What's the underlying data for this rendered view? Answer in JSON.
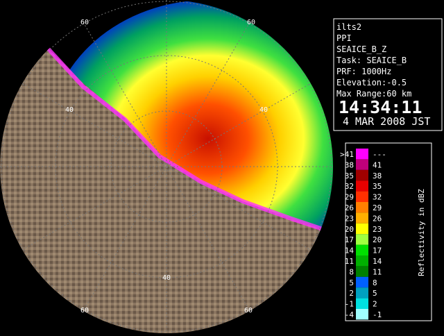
{
  "info": {
    "lines": [
      "ilts2",
      "PPI",
      "SEAICE_B_Z",
      "Task: SEAICE_B",
      "PRF: 1000Hz",
      "Elevation:-0.5",
      "Max Range:60 km"
    ],
    "time": "14:34:11",
    "date": "4 MAR 2008 JST"
  },
  "range_labels": [
    "60",
    "40",
    "40",
    "60",
    "40",
    "60",
    "60"
  ],
  "scale": {
    "title": "Reflectivity in dBZ",
    "left_labels": [
      ">41",
      "38",
      "35",
      "32",
      "29",
      "26",
      "23",
      "20",
      "17",
      "14",
      "11",
      "8",
      "5",
      "2",
      "-1",
      "-4"
    ],
    "right_labels": [
      "---",
      "41",
      "38",
      "35",
      "32",
      "29",
      "26",
      "23",
      "20",
      "17",
      "14",
      "11",
      "8",
      "5",
      "2",
      "-1"
    ],
    "colors": [
      "#ff00ff",
      "#c0007a",
      "#a00000",
      "#e80000",
      "#ff3000",
      "#ff8000",
      "#ffb000",
      "#ffff00",
      "#a0ff40",
      "#00e000",
      "#00b000",
      "#008000",
      "#0060ff",
      "#00a0c0",
      "#00e0e0",
      "#a0ffff"
    ]
  }
}
